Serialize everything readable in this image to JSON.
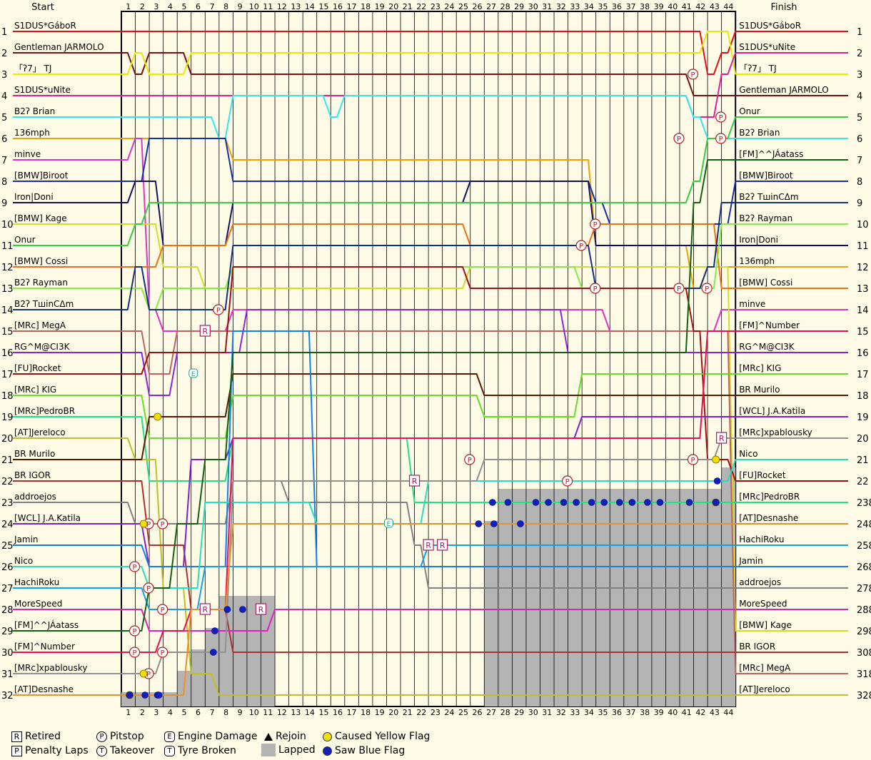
{
  "chart_data": {
    "type": "line",
    "start_label": "Start",
    "finish_label": "Finish",
    "laps": 44,
    "positions": 32,
    "start_order": [
      "S1DUS*GáboR",
      "Gentleman JARMOLO",
      "「ʔ7」 TJ",
      "S1DUS*uNite",
      "B2ʔ Brian",
      "136mph",
      "minve",
      "[BMW]Biroot",
      "Iron|Doni",
      "[BMW] Kage",
      "Onur",
      "[BMW] Cossi",
      "B2ʔ Rayman",
      "B2ʔ TшinCΔm",
      "[MRc] MegA",
      "RG^M@CI3K",
      "[FU]Rocket",
      "[MRc] KIG",
      "[MRc]PedroBR",
      "[AT]Jereloco",
      "BR Murilo",
      "BR IGOR",
      "addroejos",
      "[WCL] J.A.Katila",
      "Jamin",
      "Nico",
      "HachiRoku",
      "MoreSpeed",
      "[FM]^^JÁatass",
      "[FM]^Number",
      "[MRc]xpablousky",
      "[AT]Desnashe"
    ],
    "finish_order": [
      "S1DUS*GáboR",
      "S1DUS*uNite",
      "「ʔ7」 TJ",
      "Gentleman JARMOLO",
      "Onur",
      "B2ʔ Brian",
      "[FM]^^JÁatass",
      "[BMW]Biroot",
      "B2ʔ TшinCΔm",
      "B2ʔ Rayman",
      "Iron|Doni",
      "136mph",
      "[BMW] Cossi",
      "minve",
      "[FM]^Number",
      "RG^M@CI3K",
      "[MRc] KIG",
      "BR Murilo",
      "[WCL] J.A.Katila",
      "[MRc]xpablousky",
      "Nico",
      "[FU]Rocket",
      "[MRc]PedroBR",
      "[AT]Desnashe",
      "HachiRoku",
      "Jamin",
      "addroejos",
      "MoreSpeed",
      "[BMW] Kage",
      "BR IGOR",
      "[MRc] MegA",
      "[AT]Jereloco"
    ],
    "finish_suffix": {
      "23": "8",
      "24": "8",
      "25": "8",
      "26": "8",
      "27": "8",
      "28": "8",
      "29": "8",
      "30": "8",
      "31": "8",
      "32": "8"
    },
    "series": [
      {
        "name": "S1DUS*GáboR",
        "color": "#e01010",
        "start": 1,
        "finish": 1,
        "events": [
          [
            41,
            1
          ],
          [
            42,
            3
          ],
          [
            43,
            2
          ],
          [
            44,
            1
          ]
        ]
      },
      {
        "name": "Gentleman JARMOLO",
        "color": "#7a1010",
        "start": 2,
        "finish": 4,
        "events": [
          [
            1,
            3
          ],
          [
            2,
            2
          ],
          [
            4,
            2
          ],
          [
            5,
            3
          ],
          [
            41,
            4
          ]
        ]
      },
      {
        "name": "「ʔ7」 TJ",
        "color": "#e8e800",
        "start": 3,
        "finish": 3,
        "events": [
          [
            1,
            2
          ],
          [
            2,
            3
          ],
          [
            5,
            2
          ],
          [
            41,
            2
          ],
          [
            42,
            1
          ],
          [
            44,
            3
          ]
        ]
      },
      {
        "name": "S1DUS*uNite",
        "color": "#e0209a",
        "start": 4,
        "finish": 2,
        "events": [
          [
            41,
            5
          ],
          [
            42,
            5
          ],
          [
            43,
            3
          ],
          [
            44,
            2
          ]
        ]
      },
      {
        "name": "B2ʔ Brian",
        "color": "#30e8f0",
        "start": 5,
        "finish": 6,
        "events": [
          [
            7,
            6
          ],
          [
            8,
            4
          ],
          [
            15,
            5
          ],
          [
            16,
            4
          ],
          [
            41,
            5
          ],
          [
            42,
            6
          ]
        ]
      },
      {
        "name": "136mph",
        "color": "#f0a000",
        "start": 6,
        "finish": 12,
        "events": [
          [
            8,
            7
          ],
          [
            25,
            7
          ],
          [
            34,
            11
          ],
          [
            41,
            13
          ],
          [
            42,
            12
          ]
        ]
      },
      {
        "name": "minve",
        "color": "#e030d0",
        "start": 7,
        "finish": 14,
        "events": [
          [
            1,
            6
          ],
          [
            2,
            14
          ],
          [
            3,
            15
          ],
          [
            8,
            14
          ],
          [
            35,
            15
          ],
          [
            43,
            14
          ]
        ]
      },
      {
        "name": "[BMW]Biroot",
        "color": "#1030b0",
        "start": 8,
        "finish": 8,
        "events": [
          [
            2,
            6
          ],
          [
            8,
            8
          ],
          [
            34,
            9
          ],
          [
            35,
            10
          ],
          [
            44,
            8
          ]
        ]
      },
      {
        "name": "Iron|Doni",
        "color": "#101060",
        "start": 9,
        "finish": 11,
        "events": [
          [
            1,
            8
          ],
          [
            3,
            11
          ],
          [
            8,
            9
          ],
          [
            25,
            8
          ],
          [
            34,
            11
          ],
          [
            42,
            11
          ]
        ]
      },
      {
        "name": "[BMW] Kage",
        "color": "#d0e020",
        "start": 10,
        "finish": 29,
        "events": [
          [
            3,
            12
          ],
          [
            6,
            13
          ],
          [
            8,
            13
          ],
          [
            25,
            12
          ],
          [
            44,
            29
          ]
        ]
      },
      {
        "name": "Onur",
        "color": "#30d040",
        "start": 11,
        "finish": 5,
        "events": [
          [
            1,
            10
          ],
          [
            2,
            9
          ],
          [
            8,
            9
          ],
          [
            41,
            8
          ],
          [
            42,
            6
          ],
          [
            44,
            5
          ]
        ]
      },
      {
        "name": "[BMW] Cossi",
        "color": "#f07010",
        "start": 12,
        "finish": 13,
        "events": [
          [
            3,
            11
          ],
          [
            8,
            10
          ],
          [
            25,
            11
          ],
          [
            34,
            10
          ],
          [
            43,
            13
          ]
        ]
      },
      {
        "name": "B2ʔ Rayman",
        "color": "#80f040",
        "start": 13,
        "finish": 10,
        "events": [
          [
            2,
            14
          ],
          [
            3,
            13
          ],
          [
            8,
            12
          ],
          [
            33,
            13
          ],
          [
            43,
            10
          ]
        ]
      },
      {
        "name": "B2ʔ TшinCΔm",
        "color": "#103080",
        "start": 14,
        "finish": 9,
        "events": [
          [
            1,
            12
          ],
          [
            2,
            14
          ],
          [
            8,
            11
          ],
          [
            34,
            13
          ],
          [
            42,
            12
          ],
          [
            43,
            9
          ]
        ]
      },
      {
        "name": "[MRc] MegA",
        "color": "#c06060",
        "start": 15,
        "finish": 31,
        "events": [
          [
            2,
            17
          ],
          [
            4,
            15
          ],
          [
            7,
            15
          ]
        ]
      },
      {
        "name": "RG^M@CI3K",
        "color": "#9020e0",
        "start": 16,
        "finish": 16,
        "events": [
          [
            2,
            18
          ],
          [
            4,
            16
          ],
          [
            9,
            14
          ],
          [
            32,
            16
          ]
        ]
      },
      {
        "name": "[FU]Rocket",
        "color": "#a01010",
        "start": 17,
        "finish": 22,
        "events": [
          [
            2,
            16
          ],
          [
            8,
            12
          ],
          [
            25,
            13
          ],
          [
            41,
            15
          ],
          [
            42,
            21
          ],
          [
            44,
            22
          ]
        ]
      },
      {
        "name": "[MRc] KIG",
        "color": "#60e020",
        "start": 18,
        "finish": 17,
        "events": [
          [
            2,
            20
          ],
          [
            8,
            18
          ],
          [
            26,
            19
          ],
          [
            33,
            17
          ]
        ]
      },
      {
        "name": "[MRc]PedroBR",
        "color": "#20e080",
        "start": 19,
        "finish": 23,
        "events": [
          [
            2,
            22
          ],
          [
            8,
            20
          ],
          [
            21,
            23
          ],
          [
            43,
            23
          ]
        ]
      },
      {
        "name": "[AT]Jereloco",
        "color": "#c0c020",
        "start": 20,
        "finish": 32,
        "events": [
          [
            1,
            21
          ],
          [
            3,
            27
          ],
          [
            5,
            31
          ],
          [
            7,
            32
          ]
        ]
      },
      {
        "name": "BR Murilo",
        "color": "#5a1a00",
        "start": 21,
        "finish": 18,
        "events": [
          [
            2,
            19
          ],
          [
            8,
            17
          ],
          [
            26,
            18
          ]
        ]
      },
      {
        "name": "BR IGOR",
        "color": "#b03030",
        "start": 22,
        "finish": 30,
        "events": [
          [
            2,
            25
          ],
          [
            5,
            28
          ],
          [
            8,
            30
          ]
        ]
      },
      {
        "name": "addroejos",
        "color": "#808080",
        "start": 23,
        "finish": 27,
        "events": [
          [
            1,
            24
          ],
          [
            8,
            22
          ],
          [
            12,
            23
          ],
          [
            21,
            25
          ],
          [
            22,
            27
          ]
        ]
      },
      {
        "name": "[WCL] J.A.Katila",
        "color": "#8020d0",
        "start": 24,
        "finish": 19,
        "events": [
          [
            2,
            26
          ],
          [
            5,
            21
          ],
          [
            8,
            20
          ],
          [
            26,
            20
          ],
          [
            33,
            19
          ]
        ]
      },
      {
        "name": "Jamin",
        "color": "#1080f0",
        "start": 25,
        "finish": 26,
        "events": [
          [
            2,
            26
          ],
          [
            8,
            15
          ],
          [
            14,
            26
          ],
          [
            21,
            26
          ]
        ]
      },
      {
        "name": "Nico",
        "color": "#20e0c0",
        "start": 26,
        "finish": 21,
        "events": [
          [
            2,
            27
          ],
          [
            6,
            23
          ],
          [
            14,
            24
          ],
          [
            22,
            22
          ],
          [
            42,
            22
          ],
          [
            44,
            21
          ]
        ]
      },
      {
        "name": "HachiRoku",
        "color": "#10a0f0",
        "start": 27,
        "finish": 25,
        "events": [
          [
            2,
            28
          ],
          [
            6,
            26
          ],
          [
            22,
            25
          ]
        ]
      },
      {
        "name": "MoreSpeed",
        "color": "#e020c0",
        "start": 28,
        "finish": 28,
        "events": [
          [
            2,
            29
          ],
          [
            11,
            28
          ]
        ]
      },
      {
        "name": "[FM]^^JÁatass",
        "color": "#106010",
        "start": 29,
        "finish": 7,
        "events": [
          [
            2,
            27
          ],
          [
            4,
            24
          ],
          [
            6,
            21
          ],
          [
            8,
            16
          ],
          [
            41,
            9
          ],
          [
            42,
            7
          ]
        ]
      },
      {
        "name": "[FM]^Number",
        "color": "#e81050",
        "start": 30,
        "finish": 15,
        "events": [
          [
            3,
            29
          ],
          [
            5,
            28
          ],
          [
            8,
            20
          ],
          [
            42,
            15
          ]
        ]
      },
      {
        "name": "[MRc]xpablousky",
        "color": "#909090",
        "start": 31,
        "finish": 20,
        "events": [
          [
            3,
            30
          ],
          [
            5,
            30
          ],
          [
            8,
            22
          ],
          [
            26,
            21
          ],
          [
            43,
            20
          ]
        ]
      },
      {
        "name": "[AT]Desnashe",
        "color": "#f09020",
        "start": 32,
        "finish": 24,
        "events": [
          [
            3,
            32
          ],
          [
            5,
            28
          ],
          [
            8,
            24
          ],
          [
            28,
            24
          ]
        ]
      }
    ],
    "pitstops": [
      [
        1,
        26
      ],
      [
        1,
        29
      ],
      [
        1,
        30
      ],
      [
        2,
        24
      ],
      [
        2,
        27
      ],
      [
        3,
        24
      ],
      [
        3,
        28
      ],
      [
        3,
        30
      ],
      [
        7,
        14
      ],
      [
        25,
        21
      ],
      [
        32,
        22
      ],
      [
        33,
        11
      ],
      [
        34,
        10
      ],
      [
        34,
        13
      ],
      [
        40,
        6
      ],
      [
        40,
        13
      ],
      [
        41,
        3
      ],
      [
        41,
        21
      ],
      [
        42,
        13
      ],
      [
        43,
        6
      ],
      [
        43,
        5
      ],
      [
        2,
        31
      ]
    ],
    "retired": [
      [
        6,
        15
      ],
      [
        6,
        28
      ],
      [
        10,
        28
      ],
      [
        21,
        22
      ],
      [
        22,
        25
      ],
      [
        23,
        25
      ],
      [
        43,
        20
      ]
    ],
    "engine_damage": [
      [
        5,
        17
      ],
      [
        19,
        24
      ]
    ],
    "yellow_flags": [
      [
        1,
        32
      ],
      [
        2,
        31
      ],
      [
        2,
        24
      ],
      [
        3,
        19
      ],
      [
        43,
        21
      ],
      [
        43,
        23
      ]
    ],
    "blue_flags": [
      [
        1,
        32
      ],
      [
        2,
        32
      ],
      [
        3,
        32
      ],
      [
        3,
        32
      ],
      [
        7,
        30
      ],
      [
        7,
        29
      ],
      [
        8,
        28
      ],
      [
        9,
        28
      ],
      [
        26,
        24
      ],
      [
        27,
        24
      ],
      [
        27,
        23
      ],
      [
        28,
        23
      ],
      [
        29,
        24
      ],
      [
        30,
        23
      ],
      [
        31,
        23
      ],
      [
        32,
        23
      ],
      [
        33,
        23
      ],
      [
        34,
        23
      ],
      [
        35,
        23
      ],
      [
        36,
        23
      ],
      [
        37,
        23
      ],
      [
        38,
        23
      ],
      [
        39,
        23
      ],
      [
        41,
        23
      ],
      [
        43,
        23
      ],
      [
        43,
        22
      ]
    ],
    "lapped_regions": [
      {
        "from_lap": 0,
        "to_lap": 4,
        "from_pos": 32
      },
      {
        "from_lap": 4,
        "to_lap": 5,
        "from_pos": 31
      },
      {
        "from_lap": 5,
        "to_lap": 6,
        "from_pos": 30
      },
      {
        "from_lap": 6,
        "to_lap": 7,
        "from_pos": 29
      },
      {
        "from_lap": 7,
        "to_lap": 11,
        "from_pos": 27.5
      },
      {
        "from_lap": 26,
        "to_lap": 27,
        "from_pos": 24
      },
      {
        "from_lap": 27,
        "to_lap": 43,
        "from_pos": 22.5
      },
      {
        "from_lap": 43,
        "to_lap": 44,
        "from_pos": 21.5
      }
    ]
  },
  "legend": {
    "retired_label": "Retired",
    "penalty_label": "Penalty Laps",
    "pitstop_label": "Pitstop",
    "takeover_label": "Takeover",
    "engine_label": "Engine Damage",
    "tyre_label": "Tyre Broken",
    "rejoin_label": "Rejoin",
    "lapped_label": "Lapped",
    "yellow_label": "Caused Yellow Flag",
    "blue_label": "Saw Blue Flag",
    "retired_glyph": "R",
    "penalty_glyph": "P",
    "pitstop_glyph": "P",
    "takeover_glyph": "T",
    "engine_glyph": "E",
    "tyre_glyph": "T"
  }
}
